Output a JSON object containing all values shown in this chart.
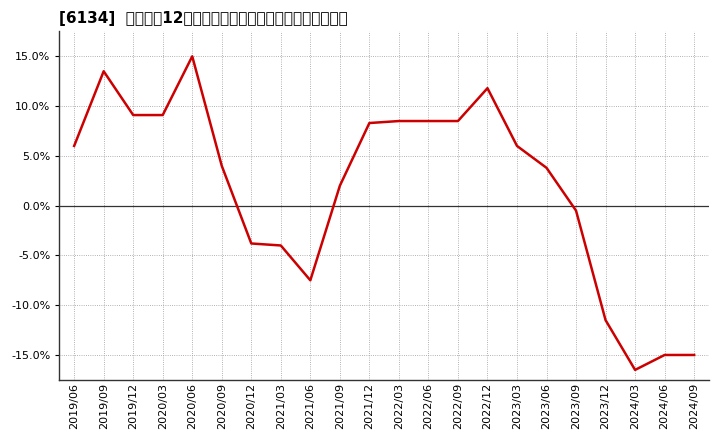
{
  "title": "[6134]  売上高の12か月移動合計の対前年同期増減率の推移",
  "line_color": "#cc0000",
  "background_color": "#ffffff",
  "plot_bg_color": "#ffffff",
  "grid_color": "#999999",
  "zero_line_color": "#333333",
  "spine_color": "#333333",
  "ylim": [
    -0.175,
    0.175
  ],
  "yticks": [
    -0.15,
    -0.1,
    -0.05,
    0.0,
    0.05,
    0.1,
    0.15
  ],
  "dates": [
    "2019/06",
    "2019/09",
    "2019/12",
    "2020/03",
    "2020/06",
    "2020/09",
    "2020/12",
    "2021/03",
    "2021/06",
    "2021/09",
    "2021/12",
    "2022/03",
    "2022/06",
    "2022/09",
    "2022/12",
    "2023/03",
    "2023/06",
    "2023/09",
    "2023/12",
    "2024/03",
    "2024/06",
    "2024/09"
  ],
  "values": [
    0.06,
    0.135,
    0.091,
    0.091,
    0.15,
    0.04,
    -0.038,
    -0.04,
    -0.075,
    0.02,
    0.083,
    0.085,
    0.085,
    0.085,
    0.118,
    0.06,
    0.038,
    -0.005,
    -0.115,
    -0.165,
    -0.15,
    -0.15
  ],
  "title_fontsize": 11,
  "tick_fontsize": 8,
  "line_width": 1.8
}
